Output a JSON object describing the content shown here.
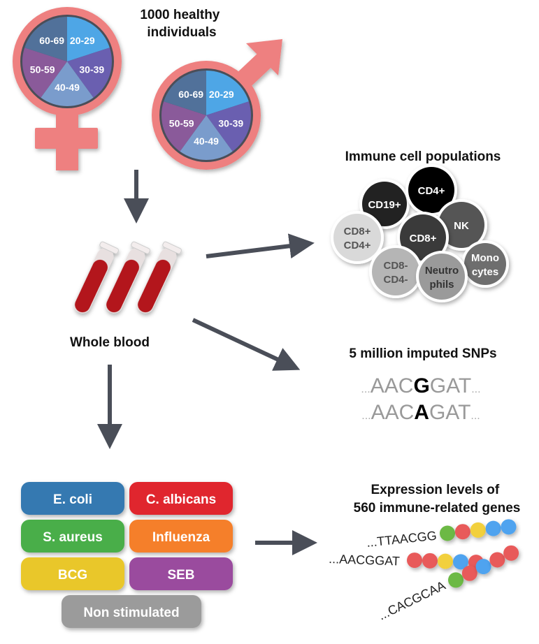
{
  "title": "1000 healthy individuals",
  "title_lines": [
    "1000 healthy",
    "individuals"
  ],
  "age_groups": [
    "20-29",
    "30-39",
    "40-49",
    "50-59",
    "60-69"
  ],
  "colors": {
    "symbol": "#ee8080",
    "age": [
      "#4ea6e6",
      "#6a5fb0",
      "#7a9ccc",
      "#8a5a9a",
      "#51719a"
    ],
    "arrow": "#4a4e58",
    "blood": "#b3191c"
  },
  "whole_blood": "Whole blood",
  "immune": {
    "title": "Immune cell populations",
    "cells": [
      {
        "label": [
          "CD19+"
        ],
        "fill": "#222222",
        "text": "#ffffff"
      },
      {
        "label": [
          "CD4+"
        ],
        "fill": "#000000",
        "text": "#ffffff"
      },
      {
        "label": [
          "NK"
        ],
        "fill": "#555555",
        "text": "#ffffff"
      },
      {
        "label": [
          "CD8+",
          "CD4+"
        ],
        "fill": "#d9d9d9",
        "text": "#555555"
      },
      {
        "label": [
          "CD8+"
        ],
        "fill": "#3a3a3a",
        "text": "#ffffff"
      },
      {
        "label": [
          "Mono",
          "cytes"
        ],
        "fill": "#6e6e6e",
        "text": "#ffffff"
      },
      {
        "label": [
          "CD8-",
          "CD4-"
        ],
        "fill": "#b5b5b5",
        "text": "#555555"
      },
      {
        "label": [
          "Neutro",
          "phils"
        ],
        "fill": "#9a9a9a",
        "text": "#333333"
      }
    ]
  },
  "snps": {
    "title": "5 million imputed SNPs",
    "rows": [
      {
        "prefix": "...",
        "before": "AAC",
        "variant": "G",
        "after": "GAT",
        "suffix": "..."
      },
      {
        "prefix": "...",
        "before": "AAC",
        "variant": "A",
        "after": "GAT",
        "suffix": "..."
      }
    ]
  },
  "stimuli": [
    {
      "label": "E. coli",
      "color": "#3579b1"
    },
    {
      "label": "C. albicans",
      "color": "#e0282e"
    },
    {
      "label": "S. aureus",
      "color": "#4aae4a"
    },
    {
      "label": "Influenza",
      "color": "#f57f2a"
    },
    {
      "label": "BCG",
      "color": "#e9c72a"
    },
    {
      "label": "SEB",
      "color": "#9a4b9e"
    },
    {
      "label": "Non stimulated",
      "color": "#9b9b9b"
    }
  ],
  "expression": {
    "title_lines": [
      "Expression levels of",
      "560 immune-related genes"
    ],
    "rows": [
      {
        "seq": "...TTAACGG",
        "beads": [
          "#6cb944",
          "#e85a5a",
          "#f2d03c",
          "#4fa3ef",
          "#4fa3ef"
        ]
      },
      {
        "seq": "...AACGGAT",
        "beads": [
          "#e85a5a",
          "#e85a5a",
          "#f2d03c",
          "#4fa3ef",
          "#e85a5a"
        ]
      },
      {
        "seq": "...CACGCAA",
        "beads": [
          "#6cb944",
          "#e85a5a",
          "#4fa3ef",
          "#e85a5a",
          "#e85a5a"
        ]
      }
    ]
  }
}
